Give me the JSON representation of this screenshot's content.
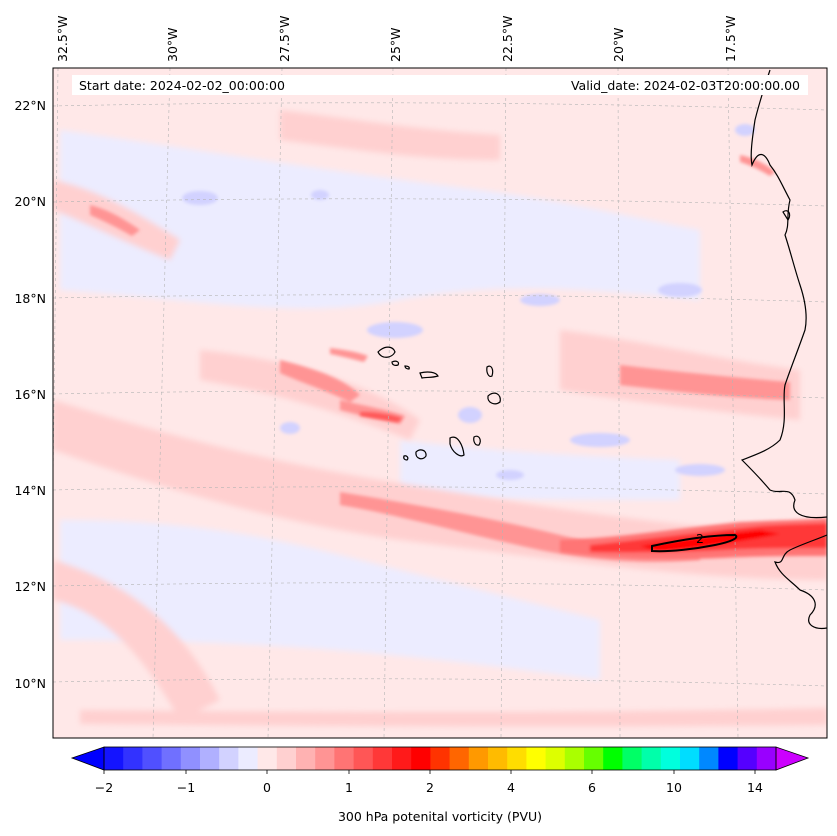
{
  "map": {
    "start_label": "Start date: 2024-02-02_00:00:00",
    "valid_label": "Valid_date: 2024-02-03T20:00:00.00",
    "longitude_labels": [
      "32.5°W",
      "30°W",
      "27.5°W",
      "25°W",
      "22.5°W",
      "20°W",
      "17.5°W"
    ],
    "latitude_labels": [
      "22°N",
      "20°N",
      "18°N",
      "16°N",
      "14°N",
      "12°N",
      "10°N"
    ],
    "contour_label": "2"
  },
  "colorbar": {
    "title": "300 hPa potenital vorticity (PVU)",
    "tick_labels": [
      "−2",
      "−1",
      "0",
      "1",
      "2",
      "4",
      "6",
      "10",
      "14"
    ],
    "colors": [
      "#1414ff",
      "#3232ff",
      "#5050ff",
      "#7070ff",
      "#9090ff",
      "#b0b0ff",
      "#d2d2ff",
      "#ececff",
      "#ffe8e8",
      "#ffd0d0",
      "#ffb2b2",
      "#ff9494",
      "#ff7474",
      "#ff5656",
      "#ff3838",
      "#ff1a1a",
      "#ff0000",
      "#ff3300",
      "#ff6600",
      "#ff9900",
      "#ffbb00",
      "#ffdd00",
      "#ffff00",
      "#ddff00",
      "#aaff00",
      "#66ff00",
      "#00ff00",
      "#00ff66",
      "#00ffaa",
      "#00ffdd",
      "#00ddff",
      "#0088ff",
      "#0000ff",
      "#5500ff",
      "#9900ff"
    ]
  }
}
